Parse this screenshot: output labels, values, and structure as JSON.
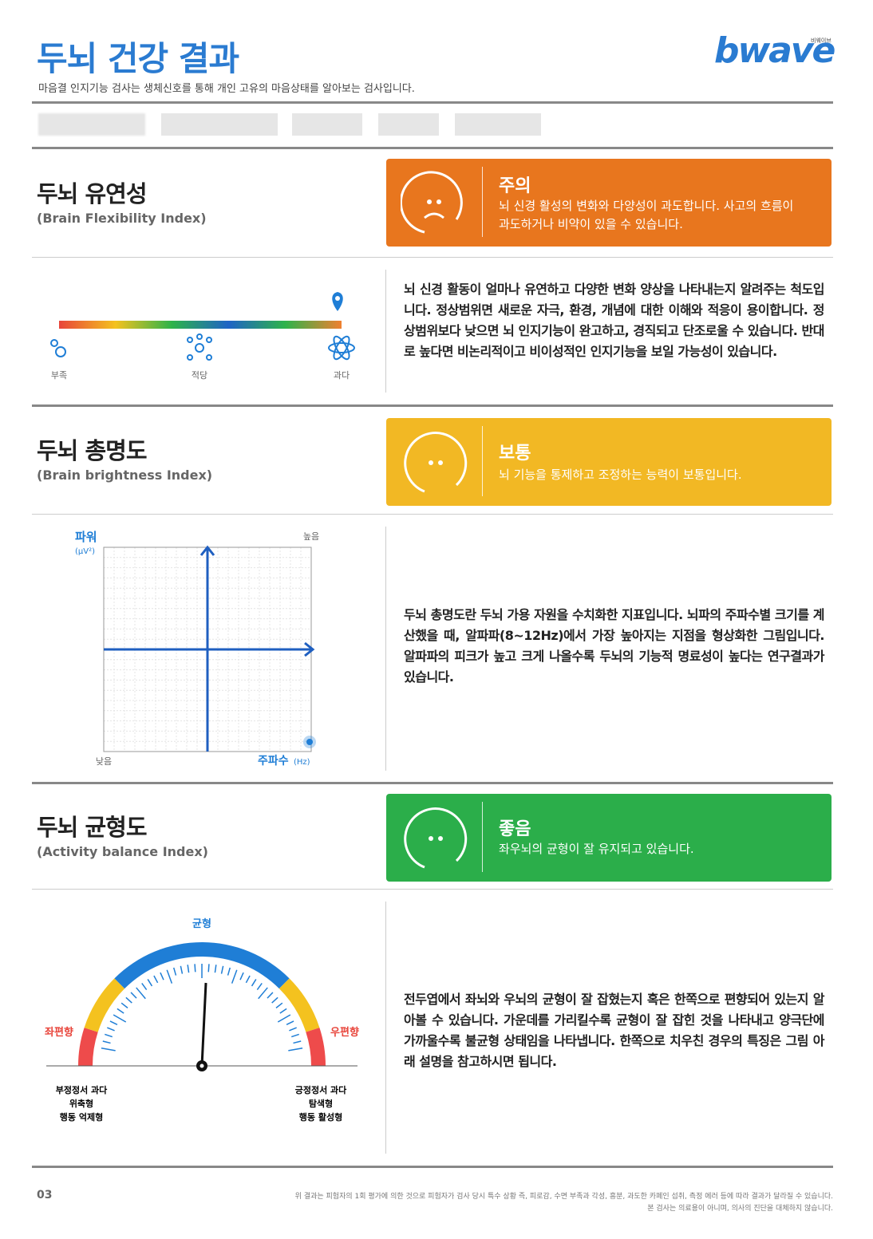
{
  "header": {
    "title": "두뇌 건강 결과",
    "subtitle": "마음결 인지기능 검사는 생체신호를 통해 개인 고유의 마음상태를 알아보는 검사입니다.",
    "logo": "bwave",
    "logo_caption": "비웨이브"
  },
  "sections": [
    {
      "title": "두뇌 유연성",
      "subtitle": "(Brain Flexibility Index)",
      "status": "주의",
      "status_text": "뇌 신경 활성의 변화와 다양성이 과도합니다. 사고의 흐름이 과도하거나 비약이 있을 수 있습니다.",
      "description": "뇌 신경 활동이 얼마나 유연하고 다양한 변화 양상을 나타내는지 알려주는 척도입니다. 정상범위면 새로운 자극, 환경, 개념에 대한 이해와 적응이 용이합니다. 정상범위보다 낮으면 뇌 인지기능이 완고하고, 경직되고 단조로울 수 있습니다. 반대로 높다면 비논리적이고 비이성적인 인지기능을 보일 가능성이 있습니다.",
      "scale_labels": [
        "부족",
        "적당",
        "과다"
      ]
    },
    {
      "title": "두뇌 총명도",
      "subtitle": "(Brain brightness Index)",
      "status": "보통",
      "status_text": "뇌 기능을 통제하고 조정하는 능력이 보통입니다.",
      "description": "두뇌 총명도란 두뇌 가용 자원을 수치화한 지표입니다. 뇌파의 주파수별 크기를 계산했을 때, 알파파(8~12Hz)에서 가장 높아지는 지점을 형상화한 그림입니다. 알파파의 피크가 높고 크게 나올수록 두뇌의 기능적 명료성이 높다는 연구결과가 있습니다.",
      "y_axis_label": "파워",
      "y_axis_unit": "(µV²)",
      "high_label": "높음",
      "low_label": "낮음",
      "x_axis_label": "주파수",
      "x_axis_unit": "(Hz)"
    },
    {
      "title": "두뇌 균형도",
      "subtitle": "(Activity balance Index)",
      "status": "좋음",
      "status_text": "좌우뇌의 균형이 잘 유지되고 있습니다.",
      "description": "전두엽에서 좌뇌와 우뇌의 균형이 잘 잡혔는지 혹은 한쪽으로 편향되어 있는지 알아볼 수 있습니다. 가운데를 가리킬수록 균형이 잘 잡힌 것을 나타내고 양극단에 가까울수록 불균형 상태임을 나타냅니다. 한쪽으로 치우친 경우의 특징은 그림 아래 설명을 참고하시면 됩니다.",
      "center_label": "균형",
      "left_label": "좌편향",
      "right_label": "우편향",
      "left_notes": [
        "부정정서 과다",
        "위축형",
        "행동 억제형"
      ],
      "right_notes": [
        "긍정정서 과다",
        "탐색형",
        "행동 활성형"
      ]
    }
  ],
  "footer": {
    "page": "03",
    "notes": [
      "위 결과는 피험자의 1회 평가에 의한 것으로 피험자가 검사 당시 특수 상황 즉, 피로감, 수면 부족과 각성, 흥분, 과도한 카페인 섭취, 측정 에러 등에 따라 결과가 달라질 수 있습니다.",
      "본 검사는 의료용이 아니며, 의사의 진단을 대체하지 않습니다."
    ]
  }
}
